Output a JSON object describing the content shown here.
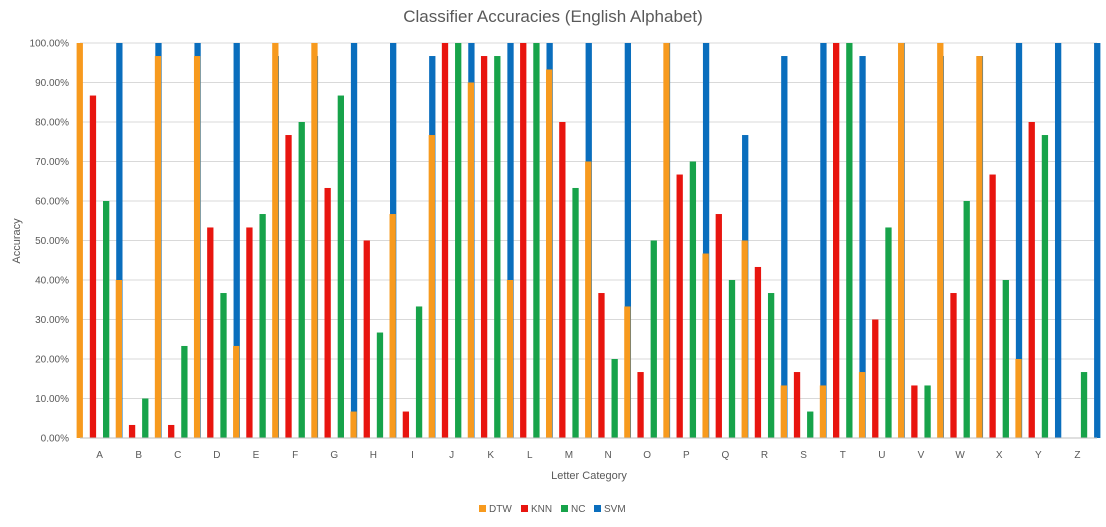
{
  "chart_data": {
    "type": "bar",
    "title": "Classifier Accuracies (English Alphabet)",
    "xlabel": "Letter Category",
    "ylabel": "Accuracy",
    "ylim": [
      0,
      100
    ],
    "y_ticks": [
      "0.00%",
      "10.00%",
      "20.00%",
      "30.00%",
      "40.00%",
      "50.00%",
      "60.00%",
      "70.00%",
      "80.00%",
      "90.00%",
      "100.00%"
    ],
    "grid": true,
    "legend_position": "bottom",
    "categories": [
      "A",
      "B",
      "C",
      "D",
      "E",
      "F",
      "G",
      "H",
      "I",
      "J",
      "K",
      "L",
      "M",
      "N",
      "O",
      "P",
      "Q",
      "R",
      "S",
      "T",
      "U",
      "V",
      "W",
      "X",
      "Y",
      "Z"
    ],
    "series": [
      {
        "name": "DTW",
        "color": "#F79A1E",
        "values": [
          100,
          40,
          96.7,
          96.7,
          23.3,
          100,
          100,
          6.7,
          56.7,
          76.7,
          90,
          40,
          93.3,
          70,
          33.3,
          100,
          46.7,
          50,
          13.3,
          13.3,
          16.7,
          100,
          100,
          96.7,
          20,
          0
        ]
      },
      {
        "name": "KNN",
        "color": "#E8150F",
        "values": [
          86.7,
          3.3,
          3.3,
          53.3,
          53.3,
          76.7,
          63.3,
          50,
          6.7,
          100,
          96.7,
          100,
          80,
          36.7,
          16.7,
          66.7,
          56.7,
          43.3,
          16.7,
          100,
          30,
          13.3,
          36.7,
          66.7,
          80,
          0
        ]
      },
      {
        "name": "NC",
        "color": "#17A34A",
        "values": [
          60,
          10,
          23.3,
          36.7,
          56.7,
          80,
          86.7,
          26.7,
          33.3,
          100,
          96.7,
          100,
          63.3,
          20,
          50,
          70,
          40,
          36.7,
          6.7,
          100,
          53.3,
          13.3,
          60,
          40,
          76.7,
          16.7
        ]
      },
      {
        "name": "SVM",
        "color": "#0A6EBD",
        "values": [
          100,
          100,
          100,
          100,
          96.7,
          96.7,
          100,
          100,
          96.7,
          100,
          100,
          100,
          100,
          100,
          100,
          100,
          76.7,
          96.7,
          100,
          96.7,
          100,
          96.7,
          96.7,
          100,
          100,
          100
        ]
      }
    ]
  }
}
